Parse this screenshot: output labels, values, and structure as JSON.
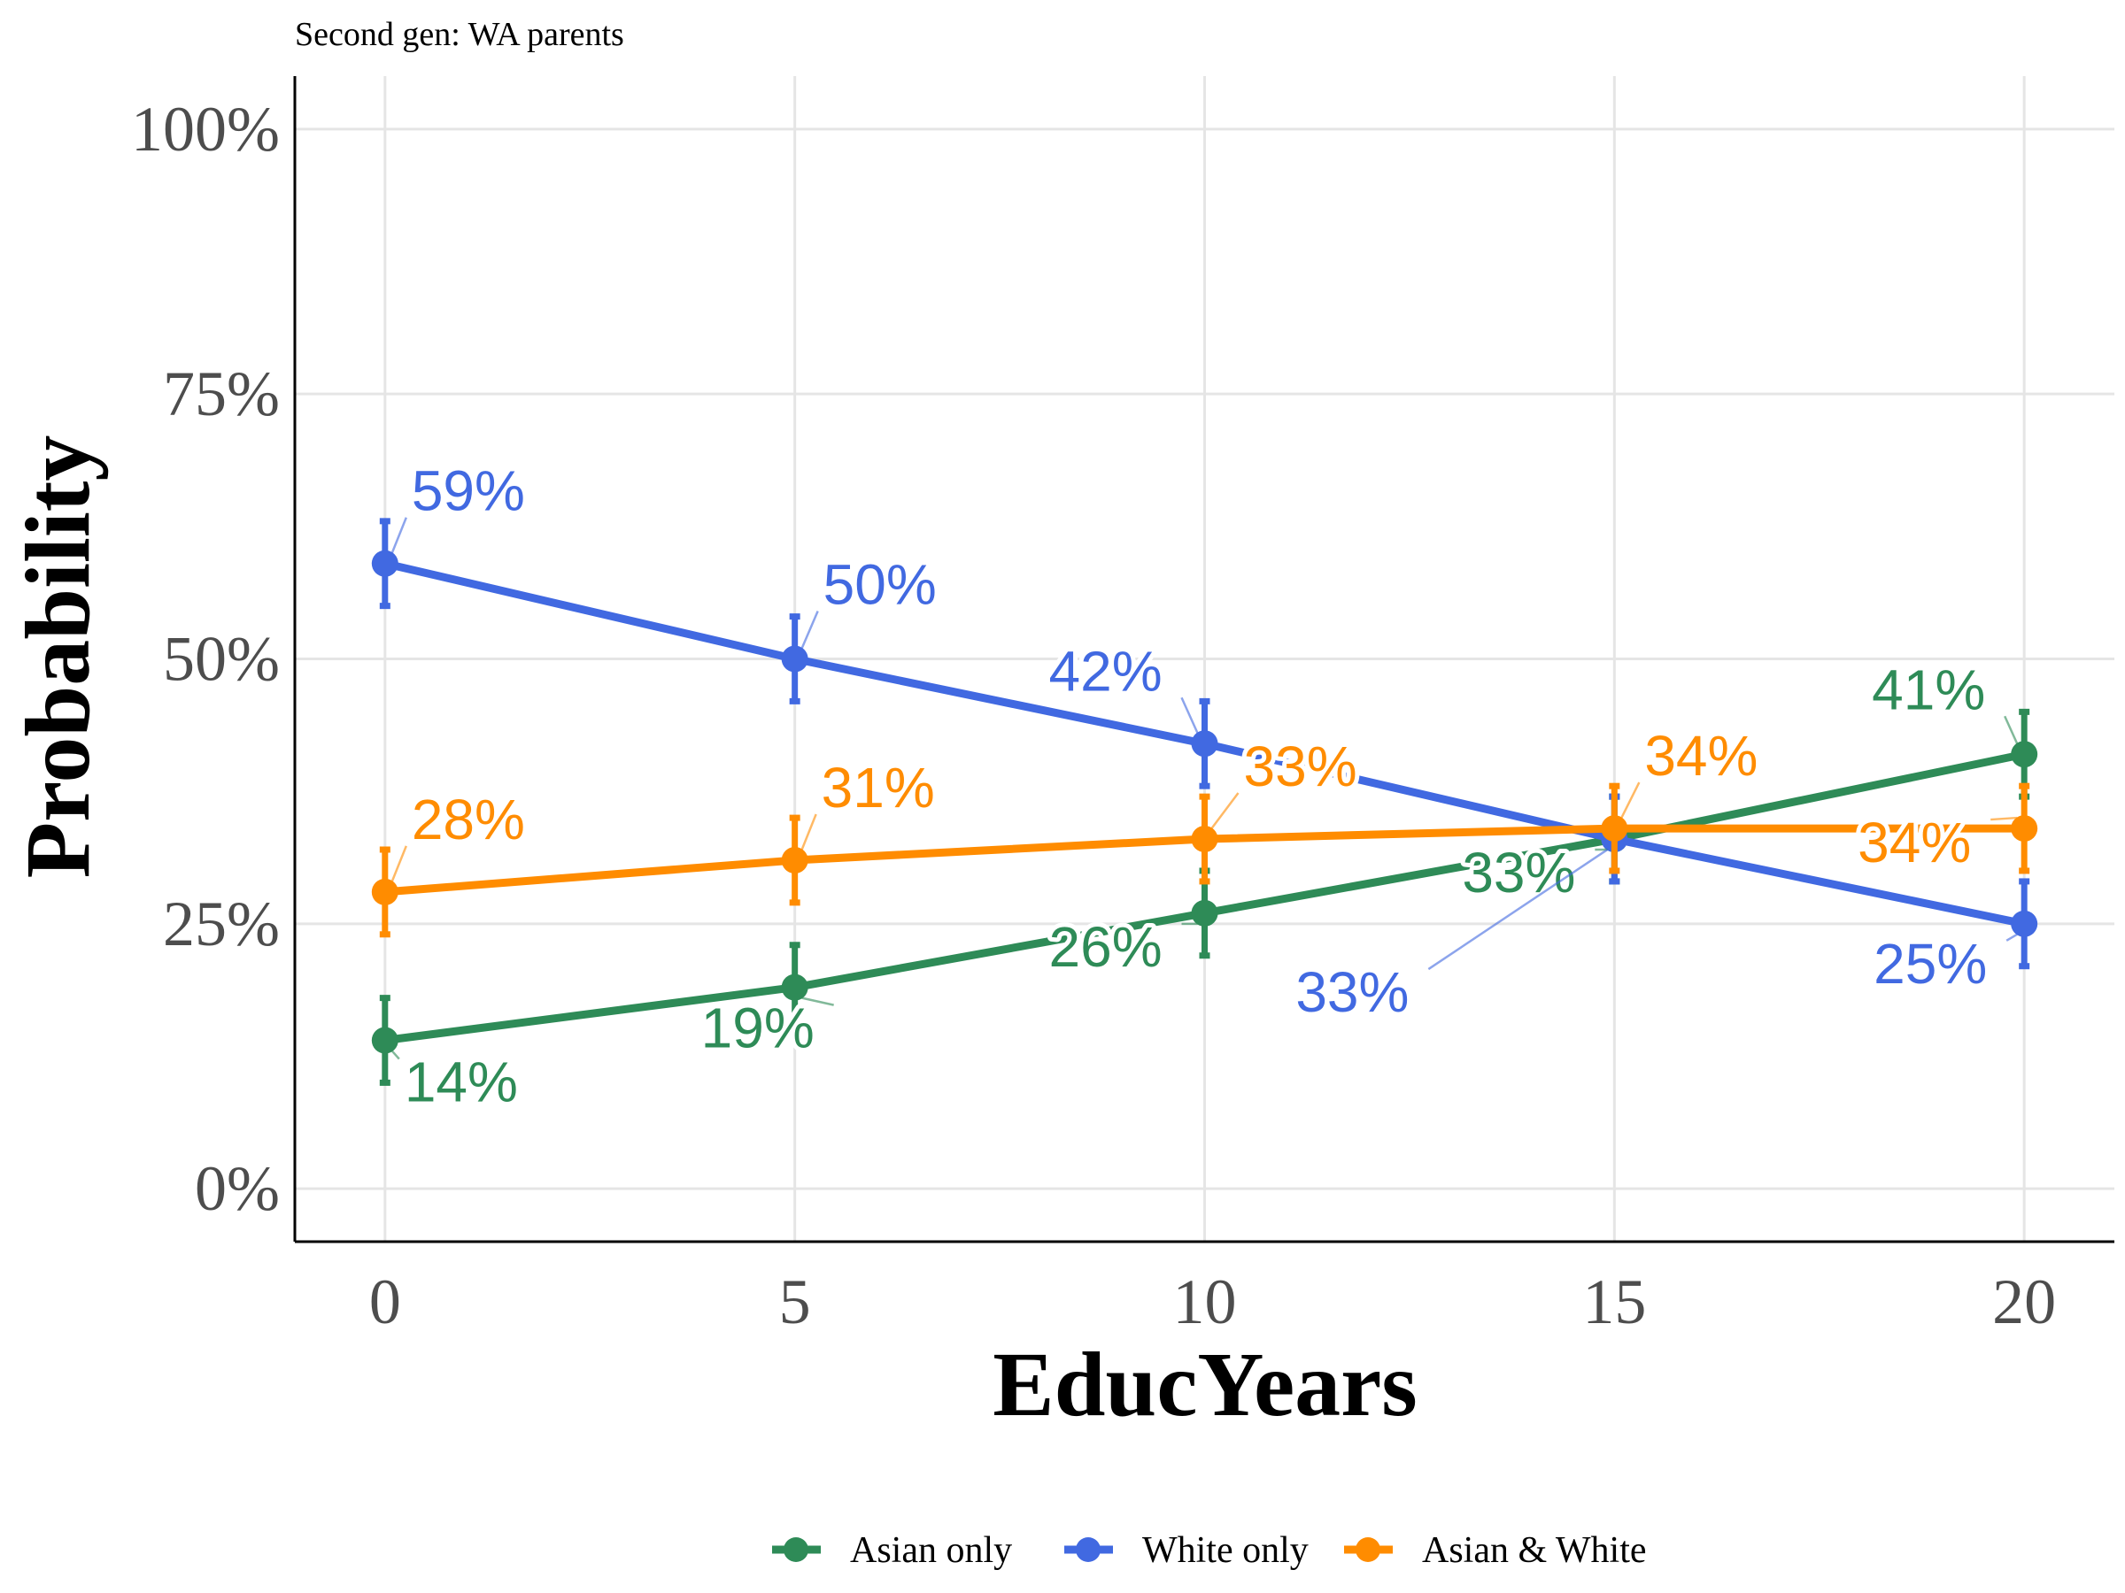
{
  "chart_data": {
    "type": "line",
    "subtitle": "Second gen: WA parents",
    "xlabel": "EducYears",
    "ylabel": "Probability",
    "xlim": [
      -1.1,
      21.1
    ],
    "ylim": [
      -0.05,
      1.05
    ],
    "x_ticks": [
      0,
      5,
      10,
      15,
      20
    ],
    "x_tick_labels": [
      "0",
      "5",
      "10",
      "15",
      "20"
    ],
    "y_ticks": [
      0,
      0.25,
      0.5,
      0.75,
      1.0
    ],
    "y_tick_labels": [
      "0%",
      "25%",
      "50%",
      "75%",
      "100%"
    ],
    "grid": true,
    "legend_position": "bottom",
    "x": [
      0,
      5,
      10,
      15,
      20
    ],
    "series": [
      {
        "name": "Asian only",
        "color": "#2E8B57",
        "values": [
          0.14,
          0.19,
          0.26,
          0.33,
          0.41
        ],
        "lower": [
          0.1,
          0.15,
          0.22,
          0.29,
          0.37
        ],
        "upper": [
          0.18,
          0.23,
          0.3,
          0.37,
          0.45
        ],
        "labels": [
          "14%",
          "19%",
          "26%",
          "33%",
          "41%"
        ]
      },
      {
        "name": "White only",
        "color": "#4169E1",
        "values": [
          0.59,
          0.5,
          0.42,
          0.33,
          0.25
        ],
        "lower": [
          0.55,
          0.46,
          0.38,
          0.29,
          0.21
        ],
        "upper": [
          0.63,
          0.54,
          0.46,
          0.37,
          0.29
        ],
        "labels": [
          "59%",
          "50%",
          "42%",
          "33%",
          "25%"
        ]
      },
      {
        "name": "Asian & White",
        "color": "#FF8C00",
        "values": [
          0.28,
          0.31,
          0.33,
          0.34,
          0.34
        ],
        "lower": [
          0.24,
          0.27,
          0.29,
          0.3,
          0.3
        ],
        "upper": [
          0.32,
          0.35,
          0.37,
          0.38,
          0.38
        ],
        "labels": [
          "28%",
          "31%",
          "33%",
          "34%",
          "34%"
        ]
      }
    ]
  }
}
